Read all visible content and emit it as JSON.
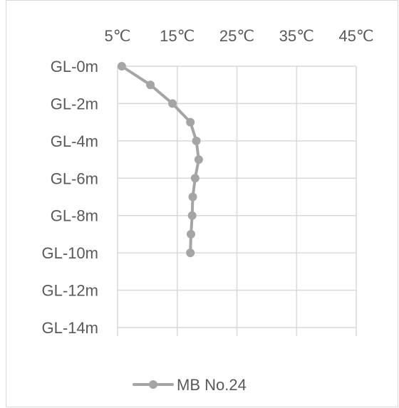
{
  "chart_data": {
    "type": "line",
    "orientation": "depth-profile",
    "x_axis": {
      "position": "top",
      "ticks": [
        "5℃",
        "15℃",
        "25℃",
        "35℃",
        "45℃"
      ],
      "tick_values": [
        5,
        15,
        25,
        35,
        45
      ],
      "range": [
        5,
        45
      ],
      "unit": "℃"
    },
    "y_axis": {
      "ticks": [
        "GL-0m",
        "GL-2m",
        "GL-4m",
        "GL-6m",
        "GL-8m",
        "GL-10m",
        "GL-12m",
        "GL-14m"
      ],
      "tick_values": [
        0,
        2,
        4,
        6,
        8,
        10,
        12,
        14
      ],
      "range": [
        0,
        14
      ],
      "reversed": true,
      "unit": "m"
    },
    "grid": true,
    "legend": {
      "placement": "bottom"
    },
    "series": [
      {
        "name": "MB No.24",
        "color": "#a5a5a5",
        "marker": "circle",
        "depth": [
          0,
          1,
          2,
          3,
          4,
          5,
          6,
          7,
          8,
          9,
          10
        ],
        "temperature": [
          5.7,
          10.5,
          14.2,
          17.2,
          18.2,
          18.6,
          18.0,
          17.6,
          17.5,
          17.3,
          17.2
        ]
      }
    ]
  }
}
